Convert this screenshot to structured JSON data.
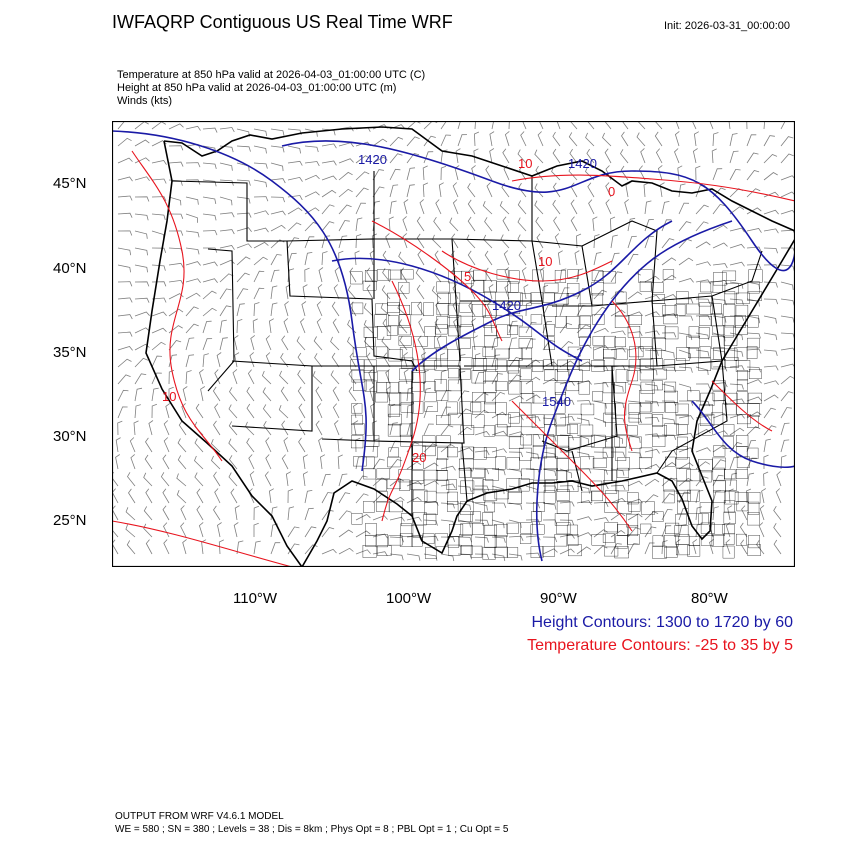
{
  "title": "IWFAQRP Contiguous US Real Time WRF",
  "init": "Init: 2026-03-31_00:00:00",
  "fields": [
    "Temperature at 850 hPa valid at 2026-04-03_01:00:00 UTC   (C)",
    "Height at 850 hPa valid at 2026-04-03_01:00:00 UTC   (m)",
    "Winds   (kts)"
  ],
  "axes": {
    "lat_ticks": [
      "45°N",
      "40°N",
      "35°N",
      "30°N",
      "25°N"
    ],
    "lon_ticks": [
      "110°W",
      "100°W",
      "90°W",
      "80°W"
    ]
  },
  "contour_labels": {
    "height": [
      "1420",
      "1420",
      "1420",
      "1540"
    ],
    "temperature": [
      "10",
      "0",
      "10",
      "5",
      "10",
      "20"
    ]
  },
  "legend": {
    "height": "Height Contours: 1300 to 1720 by 60",
    "temperature": "Temperature Contours: -25 to 35 by 5"
  },
  "footer": {
    "line1": "OUTPUT FROM WRF V4.6.1 MODEL",
    "line2": "WE = 580 ; SN = 380 ; Levels = 38 ; Dis = 8km ; Phys Opt = 8 ; PBL Opt = 1 ; Cu Opt = 5"
  },
  "colors": {
    "height_contour": "#1a1aa6",
    "temperature_contour": "#e8141e",
    "wind_barb": "#7f7f7f",
    "boundaries": "#000000"
  }
}
